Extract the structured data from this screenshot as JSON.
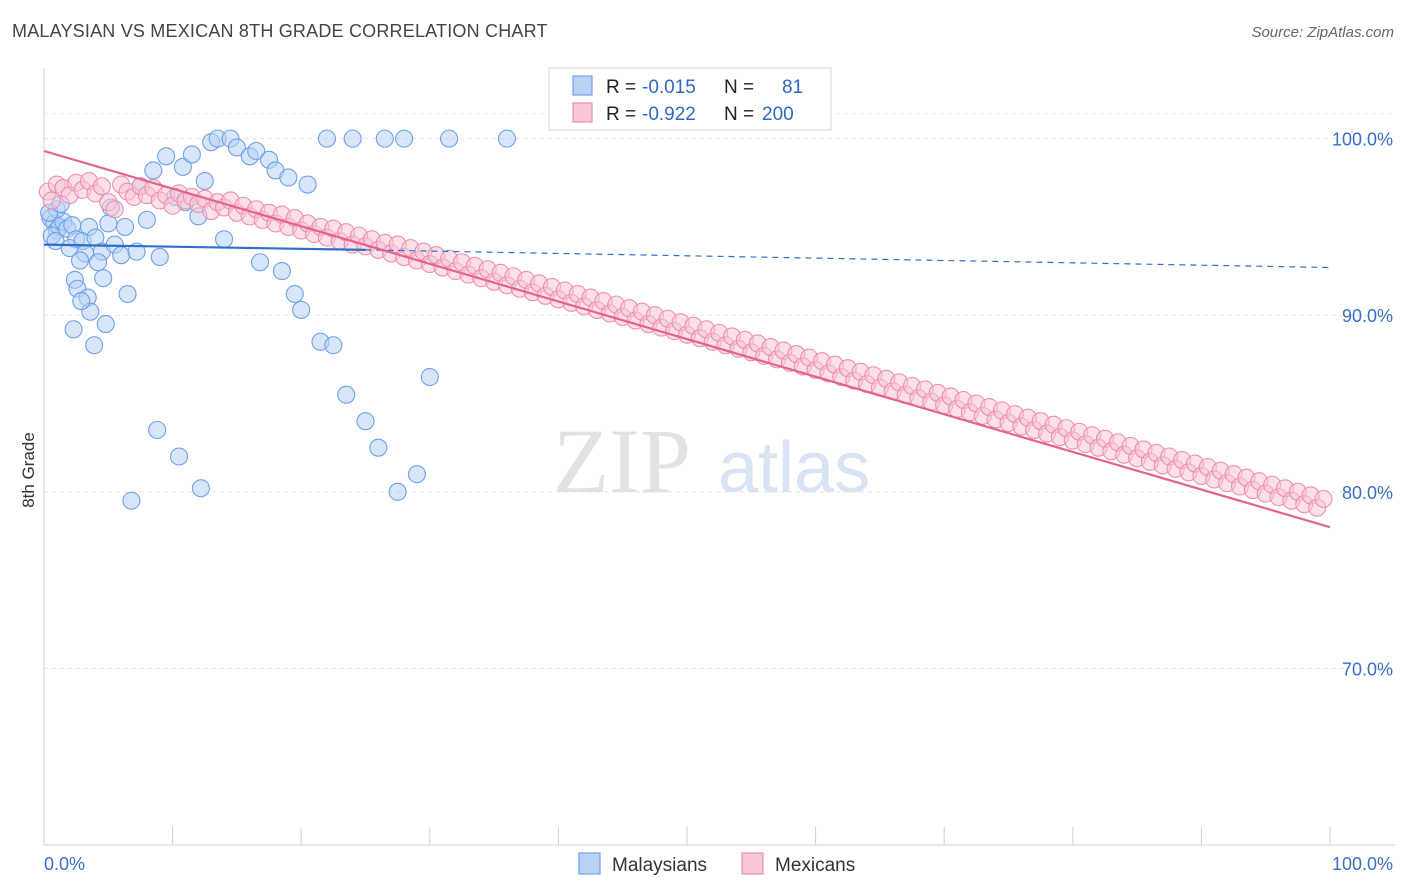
{
  "title": "MALAYSIAN VS MEXICAN 8TH GRADE CORRELATION CHART",
  "source": "Source: ZipAtlas.com",
  "watermark": {
    "zip": "ZIP",
    "atlas": "atlas"
  },
  "chart_data": {
    "type": "scatter",
    "title": "MALAYSIAN VS MEXICAN 8TH GRADE CORRELATION CHART",
    "xlabel": "",
    "ylabel": "8th Grade",
    "xlim": [
      0,
      100
    ],
    "ylim": [
      60,
      104
    ],
    "x_tick_labels": [
      {
        "value": 0,
        "label": "0.0%"
      },
      {
        "value": 100,
        "label": "100.0%"
      }
    ],
    "y_tick_labels": [
      {
        "value": 100,
        "label": "100.0%"
      },
      {
        "value": 90,
        "label": "90.0%"
      },
      {
        "value": 80,
        "label": "80.0%"
      },
      {
        "value": 70,
        "label": "70.0%"
      }
    ],
    "legend": [
      {
        "name": "Malaysians",
        "r_label": "R =",
        "r": "-0.015",
        "n_label": "N =",
        "n": "81",
        "color": "#6fa0e8",
        "fill": "#b8d1f5"
      },
      {
        "name": "Mexicans",
        "r_label": "R =",
        "r": "-0.922",
        "n_label": "N =",
        "n": "200",
        "color": "#ee8fb0",
        "fill": "#f8c6d6"
      }
    ],
    "series": [
      {
        "name": "Malaysians",
        "color": "#6fa0e8",
        "trend": {
          "x0": 0,
          "y0": 94.0,
          "x1": 25,
          "y1": 93.7,
          "dash_x1": 100,
          "dash_y1": 92.7,
          "color": "#2d6fcc"
        },
        "points": [
          [
            0.5,
            95.5
          ],
          [
            0.8,
            95.2
          ],
          [
            1.0,
            94.8
          ],
          [
            1.2,
            95.0
          ],
          [
            0.6,
            94.5
          ],
          [
            1.5,
            95.3
          ],
          [
            1.0,
            96.0
          ],
          [
            0.4,
            95.8
          ],
          [
            0.9,
            94.2
          ],
          [
            1.3,
            96.3
          ],
          [
            1.8,
            94.9
          ],
          [
            2.2,
            95.1
          ],
          [
            2.5,
            94.3
          ],
          [
            2.0,
            93.8
          ],
          [
            3.0,
            94.2
          ],
          [
            3.2,
            93.5
          ],
          [
            3.5,
            95.0
          ],
          [
            2.8,
            93.1
          ],
          [
            2.4,
            92.0
          ],
          [
            2.6,
            91.5
          ],
          [
            4.0,
            94.4
          ],
          [
            4.5,
            93.6
          ],
          [
            5.0,
            95.2
          ],
          [
            5.5,
            94.0
          ],
          [
            6.0,
            93.4
          ],
          [
            6.3,
            95.0
          ],
          [
            5.2,
            96.1
          ],
          [
            4.2,
            93.0
          ],
          [
            4.6,
            92.1
          ],
          [
            3.4,
            91.0
          ],
          [
            3.6,
            90.2
          ],
          [
            4.8,
            89.5
          ],
          [
            3.9,
            88.3
          ],
          [
            2.3,
            89.2
          ],
          [
            2.9,
            90.8
          ],
          [
            6.5,
            91.2
          ],
          [
            7.2,
            93.6
          ],
          [
            8.0,
            95.4
          ],
          [
            9.0,
            93.3
          ],
          [
            10.2,
            96.7
          ],
          [
            10.8,
            98.4
          ],
          [
            11.5,
            99.1
          ],
          [
            12.5,
            97.6
          ],
          [
            13.0,
            99.8
          ],
          [
            13.5,
            100.0
          ],
          [
            14.5,
            100.0
          ],
          [
            15.0,
            99.5
          ],
          [
            16.0,
            99.0
          ],
          [
            16.5,
            99.3
          ],
          [
            17.5,
            98.8
          ],
          [
            18.0,
            98.2
          ],
          [
            19.0,
            97.8
          ],
          [
            20.5,
            97.4
          ],
          [
            22.0,
            100.0
          ],
          [
            24.0,
            100.0
          ],
          [
            26.5,
            100.0
          ],
          [
            28.0,
            100.0
          ],
          [
            31.5,
            100.0
          ],
          [
            36.0,
            100.0
          ],
          [
            7.5,
            97.3
          ],
          [
            8.5,
            98.2
          ],
          [
            9.5,
            99.0
          ],
          [
            11.0,
            96.4
          ],
          [
            12.0,
            95.6
          ],
          [
            14.0,
            94.3
          ],
          [
            16.8,
            93.0
          ],
          [
            18.5,
            92.5
          ],
          [
            19.5,
            91.2
          ],
          [
            20.0,
            90.3
          ],
          [
            21.5,
            88.5
          ],
          [
            22.5,
            88.3
          ],
          [
            23.5,
            85.5
          ],
          [
            25.0,
            84.0
          ],
          [
            26.0,
            82.5
          ],
          [
            27.5,
            80.0
          ],
          [
            29.0,
            81.0
          ],
          [
            6.8,
            79.5
          ],
          [
            8.8,
            83.5
          ],
          [
            10.5,
            82.0
          ],
          [
            12.2,
            80.2
          ],
          [
            30.0,
            86.5
          ]
        ]
      },
      {
        "name": "Mexicans",
        "color": "#ee8fb0",
        "trend": {
          "x0": 0,
          "y0": 99.3,
          "x1": 100,
          "y1": 78.0,
          "color": "#e4628f"
        },
        "points": [
          [
            0.3,
            97.0
          ],
          [
            0.6,
            96.5
          ],
          [
            1.0,
            97.4
          ],
          [
            1.5,
            97.2
          ],
          [
            2.0,
            96.8
          ],
          [
            2.5,
            97.5
          ],
          [
            3.0,
            97.1
          ],
          [
            3.5,
            97.6
          ],
          [
            4.0,
            96.9
          ],
          [
            4.5,
            97.3
          ],
          [
            5.0,
            96.4
          ],
          [
            5.5,
            96.0
          ],
          [
            6.0,
            97.4
          ],
          [
            6.5,
            97.0
          ],
          [
            7.0,
            96.7
          ],
          [
            7.5,
            97.3
          ],
          [
            8.0,
            96.8
          ],
          [
            8.5,
            97.2
          ],
          [
            9.0,
            96.5
          ],
          [
            9.5,
            96.8
          ],
          [
            10.0,
            96.2
          ],
          [
            10.5,
            96.9
          ],
          [
            11.0,
            96.5
          ],
          [
            11.5,
            96.7
          ],
          [
            12.0,
            96.3
          ],
          [
            12.5,
            96.6
          ],
          [
            13.0,
            95.9
          ],
          [
            13.5,
            96.4
          ],
          [
            14.0,
            96.1
          ],
          [
            14.5,
            96.5
          ],
          [
            15.0,
            95.8
          ],
          [
            15.5,
            96.2
          ],
          [
            16.0,
            95.6
          ],
          [
            16.5,
            96.0
          ],
          [
            17.0,
            95.4
          ],
          [
            17.5,
            95.8
          ],
          [
            18.0,
            95.2
          ],
          [
            18.5,
            95.7
          ],
          [
            19.0,
            95.0
          ],
          [
            19.5,
            95.5
          ],
          [
            20.0,
            94.8
          ],
          [
            20.5,
            95.2
          ],
          [
            21.0,
            94.6
          ],
          [
            21.5,
            95.0
          ],
          [
            22.0,
            94.4
          ],
          [
            22.5,
            94.9
          ],
          [
            23.0,
            94.2
          ],
          [
            23.5,
            94.7
          ],
          [
            24.0,
            94.0
          ],
          [
            24.5,
            94.5
          ],
          [
            25.0,
            93.9
          ],
          [
            25.5,
            94.3
          ],
          [
            26.0,
            93.7
          ],
          [
            26.5,
            94.1
          ],
          [
            27.0,
            93.5
          ],
          [
            27.5,
            94.0
          ],
          [
            28.0,
            93.3
          ],
          [
            28.5,
            93.8
          ],
          [
            29.0,
            93.1
          ],
          [
            29.5,
            93.6
          ],
          [
            30.0,
            92.9
          ],
          [
            30.5,
            93.4
          ],
          [
            31.0,
            92.7
          ],
          [
            31.5,
            93.2
          ],
          [
            32.0,
            92.5
          ],
          [
            32.5,
            93.0
          ],
          [
            33.0,
            92.3
          ],
          [
            33.5,
            92.8
          ],
          [
            34.0,
            92.1
          ],
          [
            34.5,
            92.6
          ],
          [
            35.0,
            91.9
          ],
          [
            35.5,
            92.4
          ],
          [
            36.0,
            91.7
          ],
          [
            36.5,
            92.2
          ],
          [
            37.0,
            91.5
          ],
          [
            37.5,
            92.0
          ],
          [
            38.0,
            91.3
          ],
          [
            38.5,
            91.8
          ],
          [
            39.0,
            91.1
          ],
          [
            39.5,
            91.6
          ],
          [
            40.0,
            90.9
          ],
          [
            40.5,
            91.4
          ],
          [
            41.0,
            90.7
          ],
          [
            41.5,
            91.2
          ],
          [
            42.0,
            90.5
          ],
          [
            42.5,
            91.0
          ],
          [
            43.0,
            90.3
          ],
          [
            43.5,
            90.8
          ],
          [
            44.0,
            90.1
          ],
          [
            44.5,
            90.6
          ],
          [
            45.0,
            89.9
          ],
          [
            45.5,
            90.4
          ],
          [
            46.0,
            89.7
          ],
          [
            46.5,
            90.2
          ],
          [
            47.0,
            89.5
          ],
          [
            47.5,
            90.0
          ],
          [
            48.0,
            89.3
          ],
          [
            48.5,
            89.8
          ],
          [
            49.0,
            89.1
          ],
          [
            49.5,
            89.6
          ],
          [
            50.0,
            88.9
          ],
          [
            50.5,
            89.4
          ],
          [
            51.0,
            88.7
          ],
          [
            51.5,
            89.2
          ],
          [
            52.0,
            88.5
          ],
          [
            52.5,
            89.0
          ],
          [
            53.0,
            88.3
          ],
          [
            53.5,
            88.8
          ],
          [
            54.0,
            88.1
          ],
          [
            54.5,
            88.6
          ],
          [
            55.0,
            87.9
          ],
          [
            55.5,
            88.4
          ],
          [
            56.0,
            87.7
          ],
          [
            56.5,
            88.2
          ],
          [
            57.0,
            87.5
          ],
          [
            57.5,
            88.0
          ],
          [
            58.0,
            87.3
          ],
          [
            58.5,
            87.8
          ],
          [
            59.0,
            87.1
          ],
          [
            59.5,
            87.6
          ],
          [
            60.0,
            86.9
          ],
          [
            60.5,
            87.4
          ],
          [
            61.0,
            86.7
          ],
          [
            61.5,
            87.2
          ],
          [
            62.0,
            86.5
          ],
          [
            62.5,
            87.0
          ],
          [
            63.0,
            86.3
          ],
          [
            63.5,
            86.8
          ],
          [
            64.0,
            86.1
          ],
          [
            64.5,
            86.6
          ],
          [
            65.0,
            85.9
          ],
          [
            65.5,
            86.4
          ],
          [
            66.0,
            85.7
          ],
          [
            66.5,
            86.2
          ],
          [
            67.0,
            85.5
          ],
          [
            67.5,
            86.0
          ],
          [
            68.0,
            85.3
          ],
          [
            68.5,
            85.8
          ],
          [
            69.0,
            85.1
          ],
          [
            69.5,
            85.6
          ],
          [
            70.0,
            84.9
          ],
          [
            70.5,
            85.4
          ],
          [
            71.0,
            84.7
          ],
          [
            71.5,
            85.2
          ],
          [
            72.0,
            84.5
          ],
          [
            72.5,
            85.0
          ],
          [
            73.0,
            84.3
          ],
          [
            73.5,
            84.8
          ],
          [
            74.0,
            84.1
          ],
          [
            74.5,
            84.6
          ],
          [
            75.0,
            83.9
          ],
          [
            75.5,
            84.4
          ],
          [
            76.0,
            83.7
          ],
          [
            76.5,
            84.2
          ],
          [
            77.0,
            83.5
          ],
          [
            77.5,
            84.0
          ],
          [
            78.0,
            83.3
          ],
          [
            78.5,
            83.8
          ],
          [
            79.0,
            83.1
          ],
          [
            79.5,
            83.6
          ],
          [
            80.0,
            82.9
          ],
          [
            80.5,
            83.4
          ],
          [
            81.0,
            82.7
          ],
          [
            81.5,
            83.2
          ],
          [
            82.0,
            82.5
          ],
          [
            82.5,
            83.0
          ],
          [
            83.0,
            82.3
          ],
          [
            83.5,
            82.8
          ],
          [
            84.0,
            82.1
          ],
          [
            84.5,
            82.6
          ],
          [
            85.0,
            81.9
          ],
          [
            85.5,
            82.4
          ],
          [
            86.0,
            81.7
          ],
          [
            86.5,
            82.2
          ],
          [
            87.0,
            81.5
          ],
          [
            87.5,
            82.0
          ],
          [
            88.0,
            81.3
          ],
          [
            88.5,
            81.8
          ],
          [
            89.0,
            81.1
          ],
          [
            89.5,
            81.6
          ],
          [
            90.0,
            80.9
          ],
          [
            90.5,
            81.4
          ],
          [
            91.0,
            80.7
          ],
          [
            91.5,
            81.2
          ],
          [
            92.0,
            80.5
          ],
          [
            92.5,
            81.0
          ],
          [
            93.0,
            80.3
          ],
          [
            93.5,
            80.8
          ],
          [
            94.0,
            80.1
          ],
          [
            94.5,
            80.6
          ],
          [
            95.0,
            79.9
          ],
          [
            95.5,
            80.4
          ],
          [
            96.0,
            79.7
          ],
          [
            96.5,
            80.2
          ],
          [
            97.0,
            79.5
          ],
          [
            97.5,
            80.0
          ],
          [
            98.0,
            79.3
          ],
          [
            98.5,
            79.8
          ],
          [
            99.0,
            79.1
          ],
          [
            99.5,
            79.6
          ]
        ]
      }
    ]
  }
}
